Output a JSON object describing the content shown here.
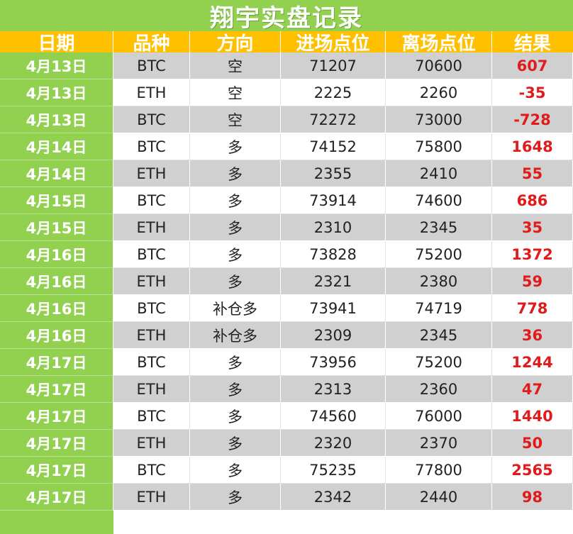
{
  "title": "翔宇实盘记录",
  "headers": [
    "日期",
    "品种",
    "方向",
    "进场点位",
    "离场点位",
    "结果"
  ],
  "rows": [
    {
      "date": "4月13日",
      "asset": "BTC",
      "direction": "空",
      "entry": "71207",
      "exit": "70600",
      "result": "607"
    },
    {
      "date": "4月13日",
      "asset": "ETH",
      "direction": "空",
      "entry": "2225",
      "exit": "2260",
      "result": "-35"
    },
    {
      "date": "4月13日",
      "asset": "BTC",
      "direction": "空",
      "entry": "72272",
      "exit": "73000",
      "result": "-728"
    },
    {
      "date": "4月14日",
      "asset": "BTC",
      "direction": "多",
      "entry": "74152",
      "exit": "75800",
      "result": "1648"
    },
    {
      "date": "4月14日",
      "asset": "ETH",
      "direction": "多",
      "entry": "2355",
      "exit": "2410",
      "result": "55"
    },
    {
      "date": "4月15日",
      "asset": "BTC",
      "direction": "多",
      "entry": "73914",
      "exit": "74600",
      "result": "686"
    },
    {
      "date": "4月15日",
      "asset": "ETH",
      "direction": "多",
      "entry": "2310",
      "exit": "2345",
      "result": "35"
    },
    {
      "date": "4月16日",
      "asset": "BTC",
      "direction": "多",
      "entry": "73828",
      "exit": "75200",
      "result": "1372"
    },
    {
      "date": "4月16日",
      "asset": "ETH",
      "direction": "多",
      "entry": "2321",
      "exit": "2380",
      "result": "59"
    },
    {
      "date": "4月16日",
      "asset": "BTC",
      "direction": "补仓多",
      "entry": "73941",
      "exit": "74719",
      "result": "778"
    },
    {
      "date": "4月16日",
      "asset": "ETH",
      "direction": "补仓多",
      "entry": "2309",
      "exit": "2345",
      "result": "36"
    },
    {
      "date": "4月17日",
      "asset": "BTC",
      "direction": "多",
      "entry": "73956",
      "exit": "75200",
      "result": "1244"
    },
    {
      "date": "4月17日",
      "asset": "ETH",
      "direction": "多",
      "entry": "2313",
      "exit": "2360",
      "result": "47"
    },
    {
      "date": "4月17日",
      "asset": "BTC",
      "direction": "多",
      "entry": "74560",
      "exit": "76000",
      "result": "1440"
    },
    {
      "date": "4月17日",
      "asset": "ETH",
      "direction": "多",
      "entry": "2320",
      "exit": "2370",
      "result": "50"
    },
    {
      "date": "4月17日",
      "asset": "BTC",
      "direction": "多",
      "entry": "75235",
      "exit": "77800",
      "result": "2565"
    },
    {
      "date": "4月17日",
      "asset": "ETH",
      "direction": "多",
      "entry": "2342",
      "exit": "2440",
      "result": "98"
    }
  ],
  "colors": {
    "title_bg": "#92d050",
    "header_bg": "#ffc000",
    "date_bg": "#92d050",
    "shaded_row": "#d0d0d0",
    "result_text": "#e01b1b"
  }
}
